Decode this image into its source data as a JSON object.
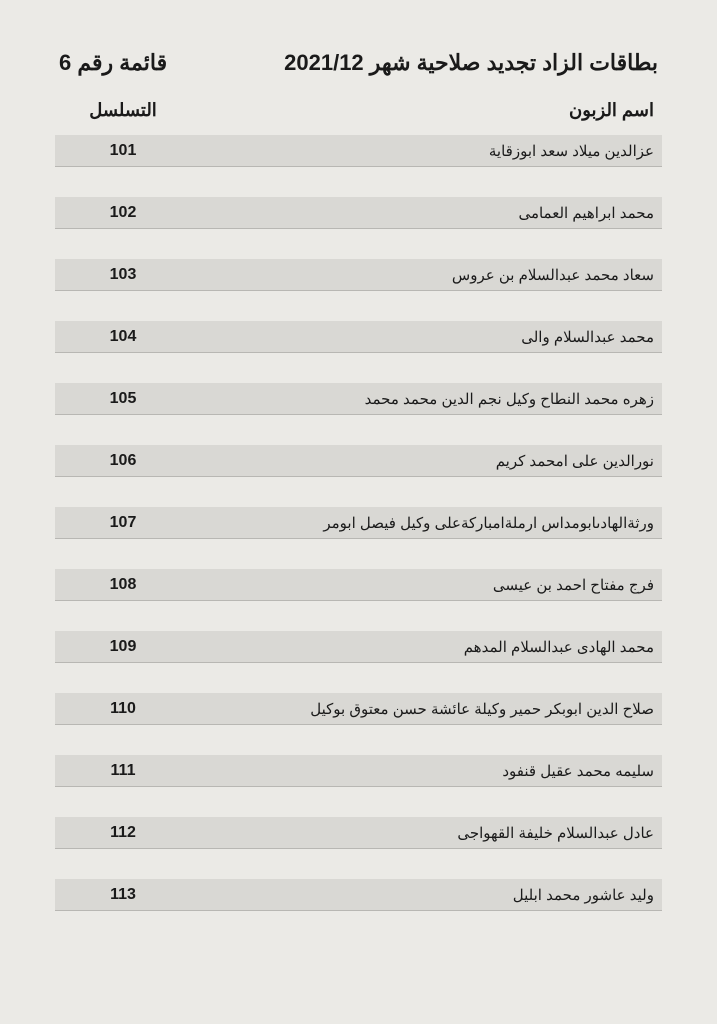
{
  "title": {
    "main": "بطاقات الزاد  تجديد صلاحية  شهر  2021/12",
    "list_label": "قائمة رقم 6"
  },
  "headers": {
    "customer_name": "اسم الزبون",
    "sequence": "التسلسل"
  },
  "table": {
    "columns": [
      "name",
      "seq"
    ],
    "row_background": "#d9d8d4",
    "row_border": "#b8b7b3",
    "rows": [
      {
        "seq": "101",
        "name": "عزالدين ميلاد سعد ابوزقاية"
      },
      {
        "seq": "102",
        "name": "محمد ابراهيم العمامى"
      },
      {
        "seq": "103",
        "name": "سعاد محمد عبدالسلام بن عروس"
      },
      {
        "seq": "104",
        "name": "محمد عبدالسلام والى"
      },
      {
        "seq": "105",
        "name": "زهره محمد النطاح وكيل نجم الدين محمد محمد"
      },
      {
        "seq": "106",
        "name": "نورالدين على امحمد كريم"
      },
      {
        "seq": "107",
        "name": "ورثةالهادىابومداس ارملةامباركةعلى وكيل فيصل ابومر"
      },
      {
        "seq": "108",
        "name": "فرج مفتاح احمد بن عيسى"
      },
      {
        "seq": "109",
        "name": "محمد الهادى عبدالسلام المدهم"
      },
      {
        "seq": "110",
        "name": "صلاح الدين ابوبكر حمير وكيلة عائشة حسن معتوق بوكيل"
      },
      {
        "seq": "111",
        "name": "سليمه محمد عقيل قنفود"
      },
      {
        "seq": "112",
        "name": "عادل عبدالسلام خليفة القهواجى"
      },
      {
        "seq": "113",
        "name": "وليد عاشور محمد ابليل"
      }
    ]
  },
  "styling": {
    "page_background": "#ebeae6",
    "text_color": "#1a1a1a",
    "title_fontsize": 22,
    "header_fontsize": 18,
    "row_fontsize": 15,
    "seq_fontsize": 16
  }
}
